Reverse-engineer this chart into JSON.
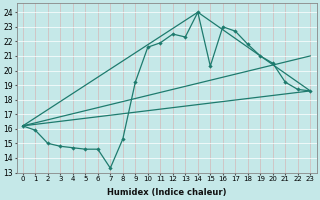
{
  "xlabel": "Humidex (Indice chaleur)",
  "bg_color": "#c5e8e8",
  "grid_color": "#add8d8",
  "line_color": "#1e7b6e",
  "xlim": [
    -0.5,
    23.5
  ],
  "ylim": [
    13,
    24.6
  ],
  "yticks": [
    13,
    14,
    15,
    16,
    17,
    18,
    19,
    20,
    21,
    22,
    23,
    24
  ],
  "xticks": [
    0,
    1,
    2,
    3,
    4,
    5,
    6,
    7,
    8,
    9,
    10,
    11,
    12,
    13,
    14,
    15,
    16,
    17,
    18,
    19,
    20,
    21,
    22,
    23
  ],
  "series1_x": [
    0,
    1,
    2,
    3,
    4,
    5,
    6,
    7,
    8,
    9,
    10,
    11,
    12,
    13,
    14,
    15,
    16,
    17,
    18,
    19,
    20,
    21,
    22,
    23
  ],
  "series1_y": [
    16.2,
    15.9,
    15.0,
    14.8,
    14.7,
    14.6,
    14.6,
    13.3,
    15.3,
    19.2,
    21.6,
    21.9,
    22.5,
    22.3,
    24.0,
    20.3,
    23.0,
    22.7,
    21.8,
    21.0,
    20.5,
    19.2,
    18.7,
    18.6
  ],
  "line1_x": [
    0,
    23
  ],
  "line1_y": [
    16.2,
    18.6
  ],
  "line2_x": [
    0,
    14,
    23
  ],
  "line2_y": [
    16.2,
    24.0,
    18.6
  ],
  "line3_x": [
    0,
    23
  ],
  "line3_y": [
    16.2,
    21.0
  ]
}
